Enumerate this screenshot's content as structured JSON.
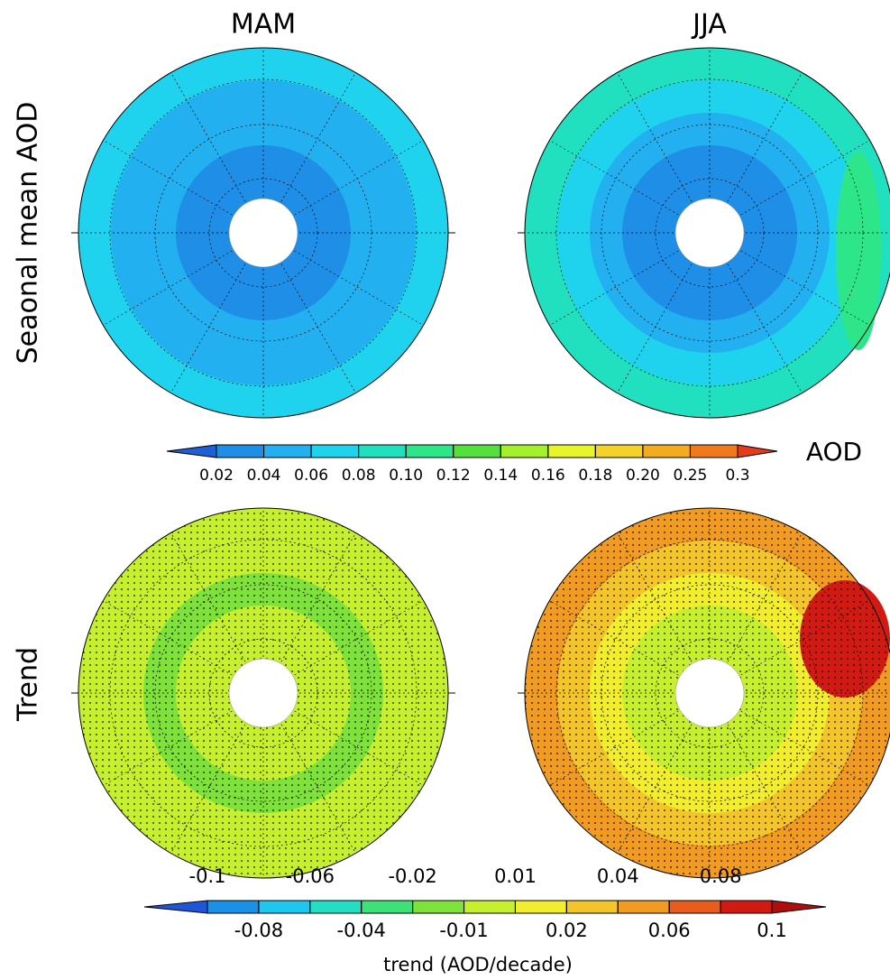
{
  "columns": [
    "MAM",
    "JJA"
  ],
  "rows": [
    "Seaonal mean AOD",
    "Trend"
  ],
  "colorbars": [
    {
      "title": "AOD",
      "ticks": [
        0.02,
        0.04,
        0.06,
        0.08,
        {
          "value": 0.1,
          "label": "0.10"
        },
        0.12,
        0.14,
        0.16,
        0.18,
        {
          "value": 0.2,
          "label": "0.20"
        },
        0.25,
        0.3
      ],
      "colors": [
        "#1f5fd6",
        "#1e8ee6",
        "#22b0f0",
        "#1fd3ee",
        "#20e0c0",
        "#2ee68a",
        "#55e040",
        "#a6ef2c",
        "#e8f52a",
        "#f5d22a",
        "#f3ac22",
        "#ee7a1d",
        "#e63a1a"
      ]
    },
    {
      "title": "trend (AOD/decade)",
      "ticks": [
        -0.1,
        -0.08,
        -0.06,
        -0.04,
        -0.02,
        -0.01,
        0.01,
        0.02,
        0.04,
        0.06,
        0.08,
        0.1
      ],
      "colors": [
        "#1f55d8",
        "#1a90e6",
        "#1fc6ee",
        "#22dfc4",
        "#3ee07a",
        "#7ee23a",
        "#c6f02e",
        "#f2ee2e",
        "#f4c52a",
        "#f19b22",
        "#e85c1c",
        "#d11a12",
        "#b00d0d"
      ]
    }
  ]
}
